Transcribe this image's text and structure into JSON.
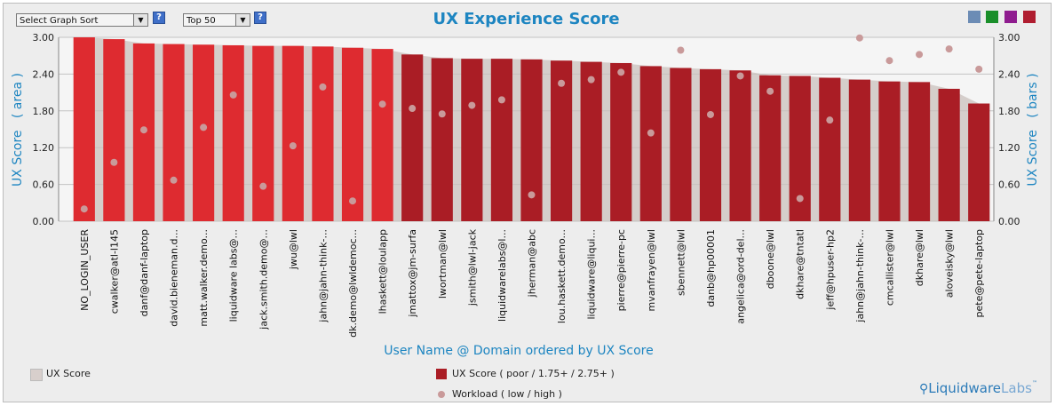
{
  "controls": {
    "sort_select": "Select Graph Sort",
    "top_select": "Top 50",
    "help": "?"
  },
  "colors": {
    "poor": "#de2b30",
    "ok": "#aa1d25",
    "area": "#c9c0bc",
    "workload": "#c99a9a",
    "swatches": [
      "#6c8cb5",
      "#1a8f2a",
      "#8f1c8f",
      "#b01d30"
    ]
  },
  "legend": {
    "area_label": "UX Score",
    "bar_label": "UX Score ( poor / 1.75+ / 2.75+ )",
    "workload_label": "Workload ( low / high )"
  },
  "logo": {
    "main": "Liquidware",
    "labs": "Labs",
    "tm": "™"
  },
  "chart_data": {
    "type": "bar",
    "title": "UX Experience Score",
    "xlabel": "User Name @ Domain ordered by UX Score",
    "ylabel_left": "UX Score   ( area )",
    "ylabel_right": "UX Score   ( bars )",
    "ylim": [
      0,
      3
    ],
    "yticks": [
      "0.00",
      "0.60",
      "1.20",
      "1.80",
      "2.40",
      "3.00"
    ],
    "categories": [
      "NO_LOGIN_USER",
      "cwalker@atl-l145",
      "danf@danf-laptop",
      "david.bieneman.d...",
      "matt.walker.demo...",
      "liquidware labs@...",
      "jack.smith.demo@...",
      "jwu@lwl",
      "jahn@jahn-think-...",
      "dk.demo@lwldemoc...",
      "lhaskett@loulapp",
      "jmattox@jm-surfa",
      "lwortman@lwl",
      "jsmith@lwl-jack",
      "liquidwarelabs@l...",
      "jherman@abc",
      "lou.haskett.demo...",
      "liquidware@liqui...",
      "pierre@pierre-pc",
      "mvanfrayen@lwl",
      "sbennett@lwl",
      "danb@hp00001",
      "angelica@ord-del...",
      "dboone@lwl",
      "dkhare@tntatl",
      "jeff@hpuser-hp2",
      "jahn@jahn-think-...",
      "cmcallister@lwl",
      "dkhare@lwl",
      "aloveisky@lwl",
      "pete@pete-laptop"
    ],
    "series": [
      {
        "name": "UX Score",
        "values": [
          3.0,
          2.97,
          2.9,
          2.89,
          2.88,
          2.87,
          2.86,
          2.86,
          2.85,
          2.83,
          2.81,
          2.72,
          2.66,
          2.65,
          2.65,
          2.64,
          2.62,
          2.6,
          2.58,
          2.53,
          2.5,
          2.48,
          2.46,
          2.38,
          2.37,
          2.34,
          2.31,
          2.28,
          2.27,
          2.16,
          1.92
        ]
      },
      {
        "name": "Workload",
        "values": [
          0.2,
          0.96,
          1.49,
          0.67,
          1.53,
          2.06,
          0.57,
          1.23,
          2.19,
          0.33,
          1.91,
          1.84,
          1.75,
          1.89,
          1.98,
          0.43,
          2.25,
          2.31,
          2.43,
          1.44,
          2.79,
          1.74,
          2.37,
          2.12,
          0.37,
          1.65,
          2.99,
          2.62,
          2.72,
          2.81,
          2.48
        ]
      }
    ]
  }
}
